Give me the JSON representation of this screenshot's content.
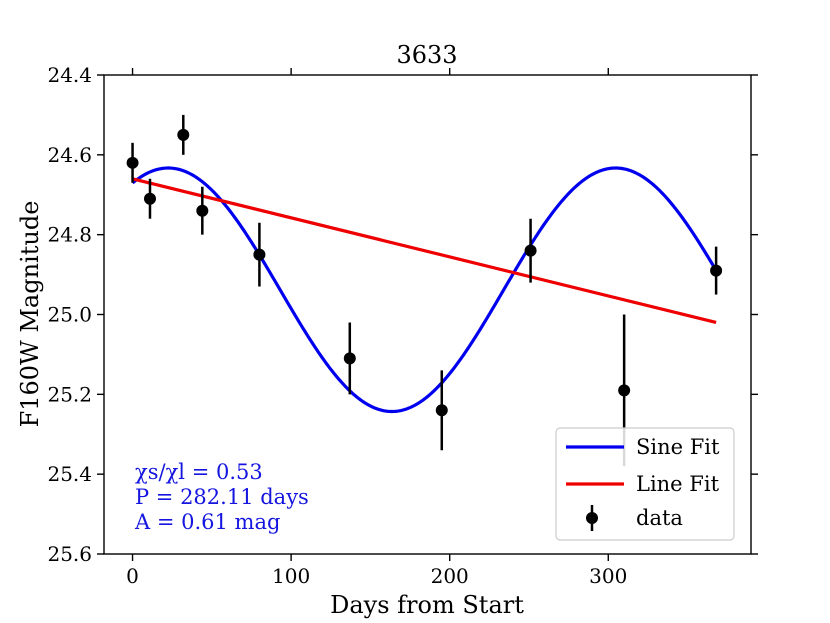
{
  "chart_data": {
    "type": "scatter",
    "title": "3633",
    "xlabel": "Days from Start",
    "ylabel": "F160W Magnitude",
    "xlim": [
      -18,
      390
    ],
    "ylim": [
      25.6,
      24.4
    ],
    "y_inverted": true,
    "x_ticks": [
      0,
      100,
      200,
      300
    ],
    "y_ticks": [
      24.4,
      24.6,
      24.8,
      25.0,
      25.2,
      25.4,
      25.6
    ],
    "y_tick_labels": [
      "24.4",
      "24.6",
      "24.8",
      "25.0",
      "25.2",
      "25.4",
      "25.6"
    ],
    "grid": false,
    "legend_position": "lower-right",
    "series": [
      {
        "name": "data",
        "kind": "errorbar",
        "color": "#000000",
        "points": [
          {
            "x": 0,
            "y": 24.62,
            "err": 0.05
          },
          {
            "x": 11,
            "y": 24.71,
            "err": 0.05
          },
          {
            "x": 32,
            "y": 24.55,
            "err": 0.05
          },
          {
            "x": 44,
            "y": 24.74,
            "err": 0.06
          },
          {
            "x": 80,
            "y": 24.85,
            "err": 0.08
          },
          {
            "x": 137,
            "y": 25.11,
            "err": 0.09
          },
          {
            "x": 195,
            "y": 25.24,
            "err": 0.1
          },
          {
            "x": 251,
            "y": 24.84,
            "err": 0.08
          },
          {
            "x": 310,
            "y": 25.19,
            "err": 0.19
          },
          {
            "x": 368,
            "y": 24.89,
            "err": 0.06
          }
        ]
      },
      {
        "name": "Sine Fit",
        "kind": "sine",
        "color": "#0000ee",
        "offset": 24.938,
        "amplitude": 0.305,
        "period": 282.11,
        "peak_x": 22.5,
        "x_range": [
          0,
          368
        ]
      },
      {
        "name": "Line Fit",
        "kind": "line",
        "color": "#ee0000",
        "x": [
          0,
          368
        ],
        "y": [
          24.66,
          25.02
        ]
      }
    ],
    "annotations": [
      "χs/χl = 0.53",
      "P = 282.11 days",
      "A = 0.61 mag"
    ],
    "legend": [
      "Sine Fit",
      "Line Fit",
      "data"
    ]
  }
}
